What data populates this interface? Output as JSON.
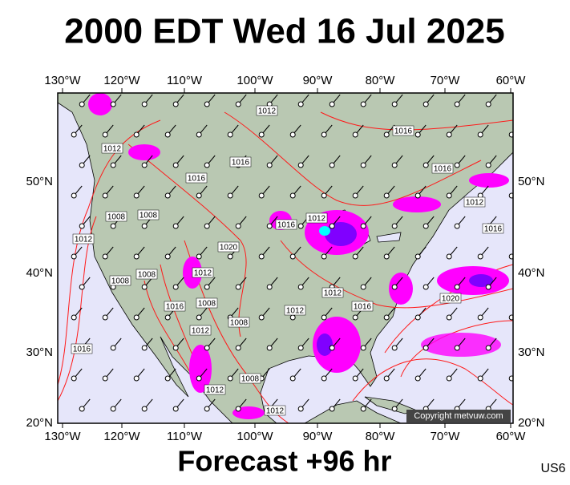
{
  "header": {
    "title": "2000 EDT Wed 16 Jul 2025"
  },
  "map": {
    "lon_labels": [
      "130°W",
      "120°W",
      "110°W",
      "100°W",
      "90°W",
      "80°W",
      "70°W",
      "60°W"
    ],
    "lat_labels": [
      "50°N",
      "40°N",
      "30°N",
      "20°N"
    ],
    "isobar_labels": [
      1012,
      1012,
      1016,
      1016,
      1016,
      1016,
      1012,
      1016,
      1008,
      1008,
      1012,
      1016,
      1012,
      1020,
      1012,
      1008,
      1008,
      1008,
      1012,
      1016,
      1020,
      1012,
      1008,
      1016,
      1012,
      1016,
      1008,
      1012,
      1012
    ],
    "copyright": "Copyright metvuw.com"
  },
  "footer": {
    "forecast": "Forecast +96 hr",
    "region": "US6"
  }
}
